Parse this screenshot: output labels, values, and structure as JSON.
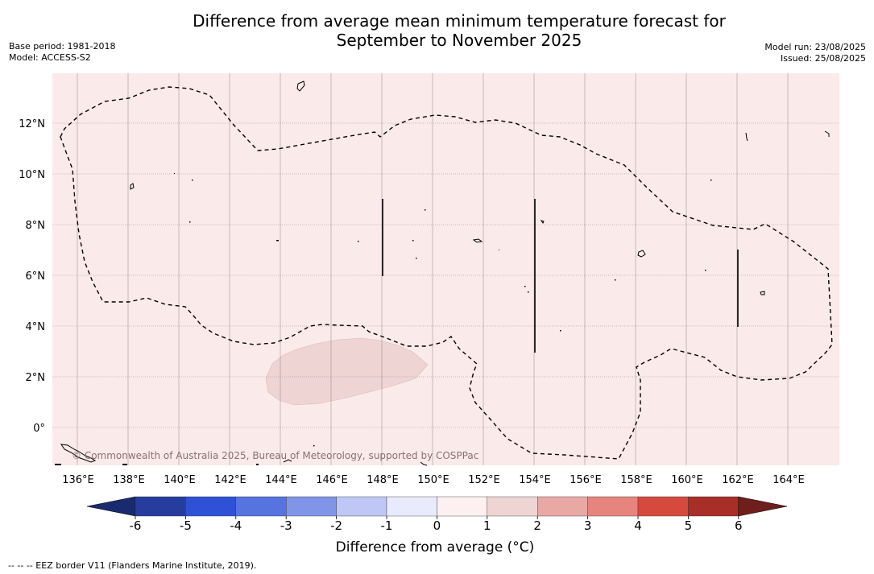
{
  "title_line1": "Difference from average mean minimum temperature forecast for",
  "title_line2": "September to November 2025",
  "base_period": "Base period: 1981-2018",
  "model": "Model: ACCESS-S2",
  "model_run": "Model run: 23/08/2025",
  "issued": "Issued: 25/08/2025",
  "credit": "© Commonwealth of Australia 2025, Bureau of Meteorology, supported by COSPPac",
  "lat_labels": [
    "12°N",
    "10°N",
    "8°N",
    "6°N",
    "4°N",
    "2°N",
    "0°"
  ],
  "lon_labels": [
    "136°E",
    "138°E",
    "140°E",
    "142°E",
    "144°E",
    "146°E",
    "148°E",
    "150°E",
    "152°E",
    "154°E",
    "156°E",
    "158°E",
    "160°E",
    "162°E",
    "164°E"
  ],
  "colorbar": {
    "title": "Difference from average (°C)",
    "tick_labels": [
      "-6",
      "-5",
      "-4",
      "-3",
      "-2",
      "-1",
      "0",
      "1",
      "2",
      "3",
      "4",
      "5",
      "6"
    ],
    "colors": [
      "#263d9e",
      "#2f51d6",
      "#5574e0",
      "#8094e8",
      "#bec7f5",
      "#e8ebfb",
      "#fcf0f0",
      "#efd4d4",
      "#e8a8a3",
      "#e6847e",
      "#d64a3d",
      "#a82e28"
    ],
    "under_color": "#1a2a6e",
    "over_color": "#6e1f1c"
  },
  "map": {
    "background_color": "#fbeaea",
    "anomaly_patch_color": "#efd4d4",
    "anomaly_patch_value_range": "1 to 2"
  },
  "footer": "--  --  -- EEZ border V11 (Flanders Marine Institute, 2019)."
}
